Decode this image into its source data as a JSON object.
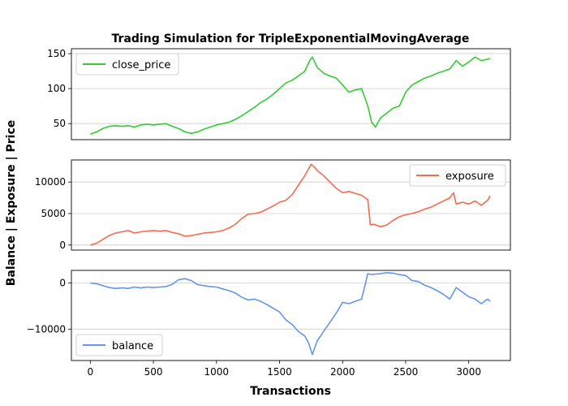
{
  "chart_data": {
    "type": "line",
    "title": "Trading Simulation for TripleExponentialMovingAverage",
    "xlabel": "Transactions",
    "ylabel": "Balance | Exposure | Price",
    "xlim": [
      -150,
      3330
    ],
    "xticks": [
      0,
      500,
      1000,
      1500,
      2000,
      2500,
      3000
    ],
    "grid": "horizontal",
    "panels": [
      {
        "series_name": "close_price",
        "color": "#32cd32",
        "legend": "upper-left",
        "ylim": [
          27,
          157
        ],
        "yticks": [
          50,
          100,
          150
        ],
        "x": [
          0,
          50,
          100,
          150,
          200,
          250,
          300,
          350,
          400,
          450,
          500,
          550,
          600,
          650,
          700,
          750,
          800,
          850,
          900,
          950,
          1000,
          1050,
          1100,
          1150,
          1200,
          1250,
          1300,
          1350,
          1400,
          1450,
          1500,
          1550,
          1600,
          1650,
          1700,
          1740,
          1760,
          1800,
          1850,
          1900,
          1950,
          2000,
          2050,
          2100,
          2150,
          2200,
          2230,
          2260,
          2300,
          2350,
          2400,
          2450,
          2500,
          2550,
          2600,
          2650,
          2700,
          2750,
          2800,
          2850,
          2900,
          2950,
          3000,
          3050,
          3100,
          3150,
          3170
        ],
        "values": [
          35,
          38,
          43,
          46,
          47,
          46,
          47,
          45,
          48,
          49,
          48,
          49,
          50,
          46,
          43,
          38,
          36,
          38,
          42,
          45,
          48,
          50,
          52,
          56,
          61,
          67,
          73,
          80,
          85,
          92,
          100,
          108,
          112,
          118,
          125,
          140,
          145,
          130,
          122,
          118,
          115,
          105,
          95,
          98,
          100,
          75,
          52,
          45,
          58,
          65,
          72,
          75,
          95,
          105,
          110,
          115,
          118,
          122,
          125,
          128,
          140,
          132,
          138,
          145,
          140,
          142,
          143
        ]
      },
      {
        "series_name": "exposure",
        "color": "#f76a4e",
        "legend": "upper-right",
        "ylim": [
          -800,
          13500
        ],
        "yticks": [
          0,
          5000,
          10000
        ],
        "x": [
          0,
          50,
          100,
          150,
          200,
          250,
          300,
          350,
          400,
          450,
          500,
          550,
          600,
          650,
          700,
          750,
          800,
          850,
          900,
          950,
          1000,
          1050,
          1100,
          1150,
          1200,
          1250,
          1300,
          1350,
          1400,
          1450,
          1500,
          1550,
          1600,
          1650,
          1700,
          1750,
          1780,
          1800,
          1850,
          1900,
          1950,
          2000,
          2050,
          2100,
          2150,
          2200,
          2220,
          2250,
          2300,
          2350,
          2400,
          2450,
          2500,
          2550,
          2600,
          2650,
          2700,
          2750,
          2800,
          2850,
          2880,
          2900,
          2950,
          3000,
          3050,
          3100,
          3150,
          3170
        ],
        "values": [
          0,
          300,
          900,
          1500,
          1900,
          2100,
          2300,
          1900,
          2100,
          2200,
          2300,
          2200,
          2300,
          2000,
          1800,
          1400,
          1500,
          1700,
          1900,
          2000,
          2100,
          2300,
          2700,
          3300,
          4200,
          4900,
          5000,
          5200,
          5700,
          6200,
          6800,
          7100,
          8000,
          9500,
          11000,
          12800,
          12300,
          11800,
          11000,
          10000,
          9000,
          8300,
          8500,
          8200,
          7900,
          7200,
          3200,
          3300,
          2900,
          3200,
          3900,
          4500,
          4800,
          5000,
          5300,
          5700,
          6000,
          6500,
          7000,
          7500,
          8300,
          6500,
          6800,
          6500,
          7000,
          6300,
          7100,
          7800
        ]
      },
      {
        "series_name": "balance",
        "color": "#6495ed",
        "legend": "lower-left",
        "ylim": [
          -16800,
          2700
        ],
        "yticks": [
          0,
          -10000
        ],
        "x": [
          0,
          50,
          100,
          150,
          200,
          250,
          300,
          350,
          400,
          450,
          500,
          550,
          600,
          650,
          700,
          750,
          800,
          850,
          900,
          950,
          1000,
          1050,
          1100,
          1150,
          1200,
          1250,
          1300,
          1350,
          1400,
          1450,
          1500,
          1550,
          1600,
          1650,
          1700,
          1730,
          1760,
          1800,
          1850,
          1900,
          1950,
          2000,
          2050,
          2100,
          2150,
          2200,
          2230,
          2300,
          2350,
          2400,
          2450,
          2500,
          2550,
          2600,
          2650,
          2700,
          2750,
          2800,
          2850,
          2900,
          2950,
          3000,
          3050,
          3100,
          3150,
          3170
        ],
        "values": [
          0,
          -200,
          -600,
          -1000,
          -1200,
          -1100,
          -1200,
          -900,
          -1100,
          -900,
          -1000,
          -900,
          -800,
          -300,
          700,
          900,
          500,
          -400,
          -600,
          -800,
          -900,
          -1300,
          -1700,
          -2200,
          -3100,
          -3700,
          -3500,
          -4000,
          -4700,
          -5500,
          -6300,
          -8000,
          -9000,
          -10500,
          -11500,
          -13000,
          -15500,
          -12500,
          -10500,
          -8500,
          -6500,
          -4200,
          -4500,
          -4000,
          -3500,
          2000,
          1800,
          2000,
          2200,
          2100,
          1800,
          1600,
          500,
          300,
          -500,
          -1000,
          -1700,
          -2500,
          -3500,
          -1000,
          -2000,
          -3000,
          -3500,
          -4500,
          -3500,
          -4000
        ]
      }
    ]
  }
}
